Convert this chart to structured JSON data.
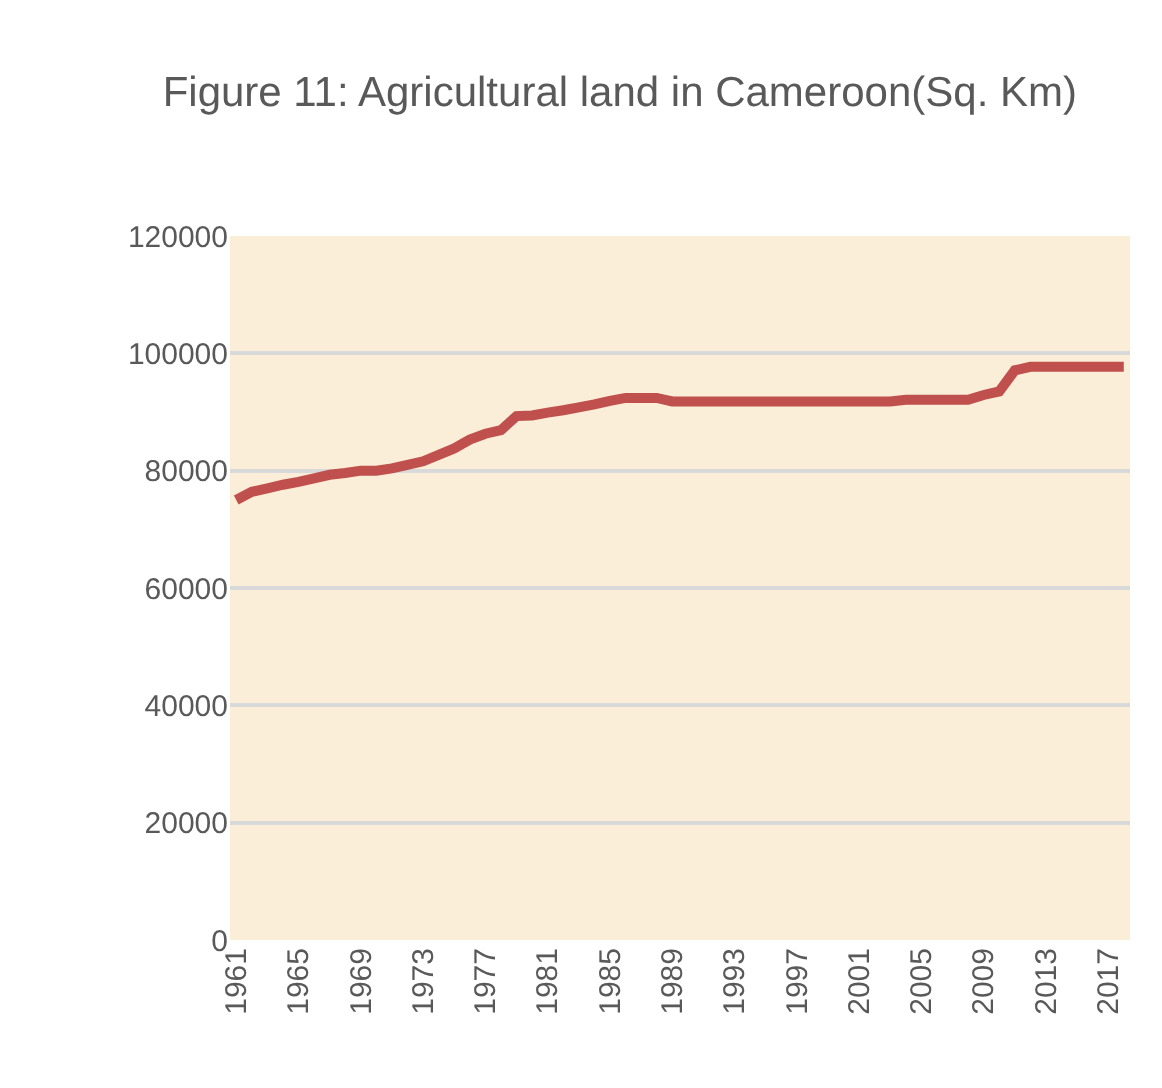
{
  "chart_data": {
    "type": "line",
    "title": "Figure 11: Agricultural land in Cameroon(Sq. Km)",
    "categories": [
      "1961",
      null,
      null,
      null,
      "1965",
      null,
      null,
      null,
      "1969",
      null,
      null,
      null,
      "1973",
      null,
      null,
      null,
      "1977",
      null,
      null,
      null,
      "1981",
      null,
      null,
      null,
      "1985",
      null,
      null,
      null,
      "1989",
      null,
      null,
      null,
      "1993",
      null,
      null,
      null,
      "1997",
      null,
      null,
      null,
      "2001",
      null,
      null,
      null,
      "2005",
      null,
      null,
      null,
      "2009",
      null,
      null,
      null,
      "2013",
      null,
      null,
      null,
      "2017",
      null
    ],
    "series": [
      {
        "color": "#c0504d",
        "values": [
          75000,
          76400,
          77000,
          77600,
          78100,
          78700,
          79300,
          79600,
          80000,
          80000,
          80400,
          81000,
          81600,
          82700,
          83800,
          85300,
          86300,
          86900,
          89300,
          89400,
          89900,
          90300,
          90800,
          91300,
          91900,
          92400,
          92400,
          92400,
          91800,
          91800,
          91800,
          91800,
          91800,
          91800,
          91800,
          91800,
          91800,
          91800,
          91800,
          91800,
          91800,
          91800,
          91800,
          92100,
          92100,
          92100,
          92100,
          92100,
          92900,
          93500,
          97100,
          97700,
          97700,
          97700,
          97700,
          97700,
          97700,
          97700
        ]
      }
    ],
    "ylim": [
      0,
      120000
    ],
    "yticks": [
      0,
      20000,
      40000,
      60000,
      80000,
      100000,
      120000
    ],
    "grid": "y",
    "marker": "none",
    "line_style": "solid"
  }
}
